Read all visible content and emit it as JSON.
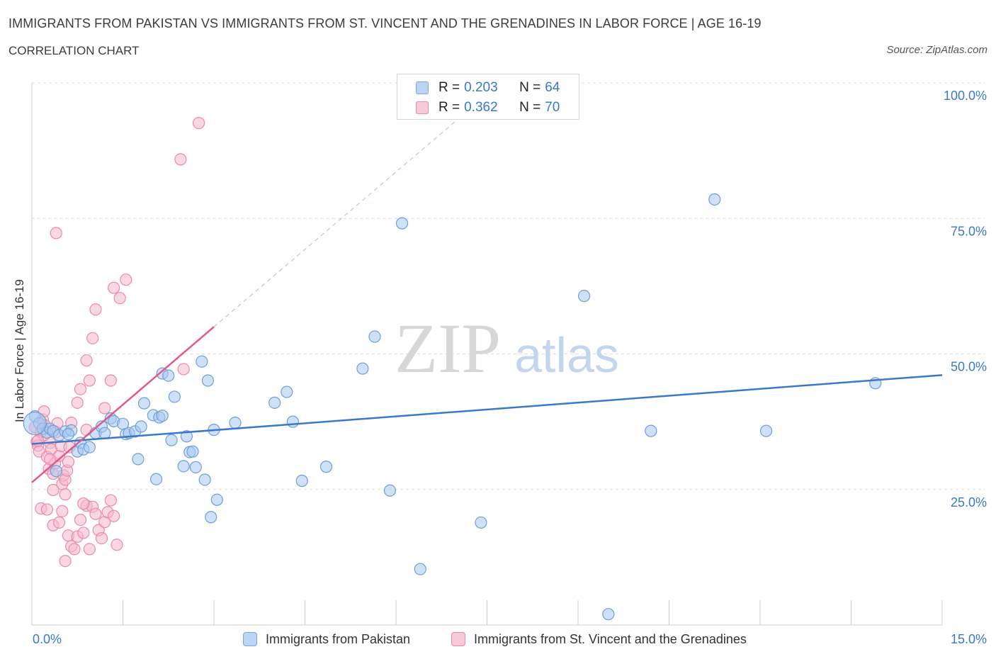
{
  "header": {
    "title": "IMMIGRANTS FROM PAKISTAN VS IMMIGRANTS FROM ST. VINCENT AND THE GRENADINES IN LABOR FORCE | AGE 16-19",
    "subtitle": "CORRELATION CHART",
    "source": "Source: ZipAtlas.com"
  },
  "watermark": {
    "zip": "ZIP",
    "atlas": "atlas"
  },
  "legend": {
    "rows": [
      {
        "r_label": "R =",
        "r_value": "0.203",
        "n_label": "N =",
        "n_value": "64",
        "color": "#a8c8f0"
      },
      {
        "r_label": "R =",
        "r_value": "0.362",
        "n_label": "N =",
        "n_value": "70",
        "color": "#f5b8cc"
      }
    ]
  },
  "bottom_legend": {
    "pakistan": "Immigrants from Pakistan",
    "stvincent": "Immigrants from St. Vincent and the Grenadines"
  },
  "chart_data": {
    "type": "scatter",
    "title": "IMMIGRANTS FROM PAKISTAN VS IMMIGRANTS FROM ST. VINCENT AND THE GRENADINES IN LABOR FORCE | AGE 16-19",
    "xlabel": "",
    "ylabel": "In Labor Force | Age 16-19",
    "xlim": [
      0,
      15
    ],
    "ylim": [
      0,
      100
    ],
    "x_tick_labels": [
      "0.0%",
      "15.0%"
    ],
    "y_tick_labels": [
      "25.0%",
      "50.0%",
      "75.0%",
      "100.0%"
    ],
    "y_ticks": [
      25,
      50,
      75,
      100
    ],
    "grid": true,
    "legend_position": "top-center",
    "colors": {
      "pakistan": "#3a78c8",
      "pakistan_fill": "#a8c8f0",
      "stvincent": "#e05a86",
      "stvincent_fill": "#f5b8cc"
    },
    "series": [
      {
        "name": "Immigrants from Pakistan",
        "trend": {
          "x": [
            0,
            15
          ],
          "y": [
            33.4,
            46.1
          ]
        },
        "points": [
          [
            0.05,
            38.5
          ],
          [
            0.12,
            37.2
          ],
          [
            0.18,
            36.2
          ],
          [
            0.25,
            35.5
          ],
          [
            0.3,
            36.2
          ],
          [
            0.35,
            35.8
          ],
          [
            0.4,
            28.4
          ],
          [
            0.45,
            35.0
          ],
          [
            0.55,
            35.7
          ],
          [
            0.65,
            35.9
          ],
          [
            0.75,
            32.0
          ],
          [
            0.8,
            33.6
          ],
          [
            0.85,
            32.4
          ],
          [
            0.95,
            32.8
          ],
          [
            1.05,
            35.4
          ],
          [
            1.15,
            36.6
          ],
          [
            1.2,
            35.4
          ],
          [
            1.3,
            38.1
          ],
          [
            1.35,
            37.6
          ],
          [
            1.5,
            37.1
          ],
          [
            1.55,
            35.2
          ],
          [
            1.6,
            35.4
          ],
          [
            1.7,
            35.7
          ],
          [
            1.75,
            30.6
          ],
          [
            1.8,
            36.6
          ],
          [
            1.85,
            40.9
          ],
          [
            2.0,
            38.7
          ],
          [
            2.1,
            38.3
          ],
          [
            2.15,
            38.6
          ],
          [
            2.05,
            26.9
          ],
          [
            2.15,
            46.4
          ],
          [
            2.25,
            46.0
          ],
          [
            2.3,
            34.1
          ],
          [
            2.35,
            42.1
          ],
          [
            2.5,
            29.3
          ],
          [
            2.55,
            34.8
          ],
          [
            2.6,
            31.9
          ],
          [
            2.65,
            32.0
          ],
          [
            2.7,
            29.1
          ],
          [
            2.8,
            48.6
          ],
          [
            2.85,
            26.8
          ],
          [
            2.9,
            45.1
          ],
          [
            2.95,
            19.9
          ],
          [
            3.0,
            36.0
          ],
          [
            3.05,
            23.1
          ],
          [
            3.35,
            37.3
          ],
          [
            4.0,
            41.0
          ],
          [
            4.2,
            43.0
          ],
          [
            4.3,
            37.5
          ],
          [
            4.45,
            26.6
          ],
          [
            4.85,
            29.2
          ],
          [
            5.45,
            47.3
          ],
          [
            5.65,
            53.2
          ],
          [
            5.9,
            24.8
          ],
          [
            6.1,
            74.1
          ],
          [
            6.4,
            10.3
          ],
          [
            7.4,
            18.9
          ],
          [
            9.1,
            60.7
          ],
          [
            10.2,
            35.8
          ],
          [
            11.25,
            78.5
          ],
          [
            12.1,
            35.8
          ],
          [
            13.9,
            44.6
          ],
          [
            9.5,
            2.0
          ],
          [
            0.6,
            35.2
          ]
        ]
      },
      {
        "name": "Immigrants from St. Vincent and the Grenadines",
        "trend": {
          "x": [
            0,
            3.0
          ],
          "y": [
            26.3,
            55.0
          ]
        },
        "trend_extended": {
          "x": [
            3.0,
            7.2
          ],
          "y": [
            55.0,
            95.0
          ]
        },
        "points": [
          [
            0.05,
            36.5
          ],
          [
            0.08,
            33.8
          ],
          [
            0.1,
            33.1
          ],
          [
            0.12,
            32.0
          ],
          [
            0.15,
            35.6
          ],
          [
            0.18,
            37.9
          ],
          [
            0.2,
            39.4
          ],
          [
            0.22,
            36.8
          ],
          [
            0.25,
            31.0
          ],
          [
            0.28,
            28.8
          ],
          [
            0.3,
            33.6
          ],
          [
            0.32,
            32.4
          ],
          [
            0.35,
            27.9
          ],
          [
            0.38,
            29.8
          ],
          [
            0.4,
            35.6
          ],
          [
            0.42,
            37.2
          ],
          [
            0.45,
            31.2
          ],
          [
            0.48,
            33.0
          ],
          [
            0.5,
            26.0
          ],
          [
            0.52,
            27.6
          ],
          [
            0.55,
            26.8
          ],
          [
            0.58,
            28.5
          ],
          [
            0.6,
            30.1
          ],
          [
            0.62,
            32.8
          ],
          [
            0.15,
            21.5
          ],
          [
            0.25,
            21.3
          ],
          [
            0.35,
            18.4
          ],
          [
            0.45,
            18.9
          ],
          [
            0.5,
            21.0
          ],
          [
            0.55,
            11.8
          ],
          [
            0.6,
            16.5
          ],
          [
            0.65,
            14.5
          ],
          [
            0.7,
            14.0
          ],
          [
            0.75,
            16.3
          ],
          [
            0.8,
            19.4
          ],
          [
            0.85,
            17.0
          ],
          [
            0.9,
            22.0
          ],
          [
            0.95,
            14.0
          ],
          [
            1.0,
            21.8
          ],
          [
            1.05,
            20.5
          ],
          [
            1.1,
            17.5
          ],
          [
            1.15,
            16.0
          ],
          [
            1.2,
            19.0
          ],
          [
            1.25,
            20.8
          ],
          [
            1.3,
            23.0
          ],
          [
            1.35,
            20.1
          ],
          [
            1.4,
            14.8
          ],
          [
            0.75,
            41.0
          ],
          [
            0.8,
            43.5
          ],
          [
            0.9,
            48.8
          ],
          [
            0.95,
            45.1
          ],
          [
            1.0,
            52.9
          ],
          [
            1.05,
            58.2
          ],
          [
            1.2,
            40.0
          ],
          [
            1.3,
            45.1
          ],
          [
            1.35,
            62.2
          ],
          [
            1.45,
            60.3
          ],
          [
            1.55,
            63.7
          ],
          [
            2.5,
            47.2
          ],
          [
            2.45,
            85.9
          ],
          [
            2.75,
            92.6
          ],
          [
            0.4,
            72.3
          ],
          [
            0.2,
            35.0
          ],
          [
            0.3,
            30.6
          ],
          [
            0.9,
            36.0
          ],
          [
            0.65,
            37.3
          ],
          [
            0.55,
            24.1
          ],
          [
            0.85,
            22.4
          ],
          [
            0.35,
            24.9
          ],
          [
            0.1,
            34.0
          ]
        ]
      }
    ]
  }
}
